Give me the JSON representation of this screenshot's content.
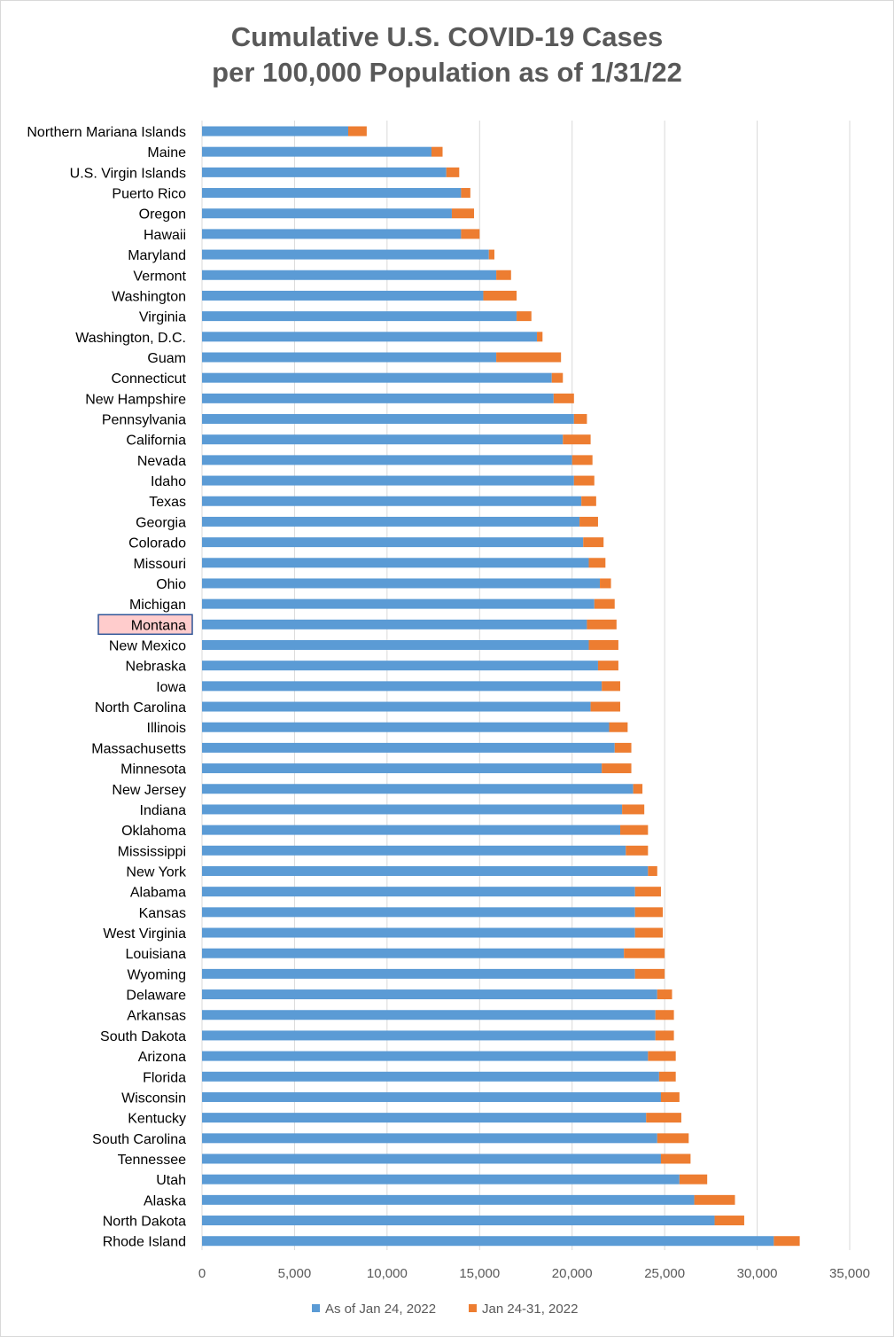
{
  "chart_data": {
    "type": "bar",
    "orientation": "horizontal",
    "stacked": true,
    "title_line1": "Cumulative U.S. COVID-19 Cases",
    "title_line2": "per 100,000 Population as of 1/31/22",
    "xlabel": "",
    "ylabel": "",
    "xlim": [
      0,
      35000
    ],
    "xticks": [
      0,
      5000,
      10000,
      15000,
      20000,
      25000,
      30000,
      35000
    ],
    "xtick_labels": [
      "0",
      "5,000",
      "10,000",
      "15,000",
      "20,000",
      "25,000",
      "30,000",
      "35,000"
    ],
    "grid": "vertical",
    "legend_position": "bottom",
    "highlighted_category": "Montana",
    "colors": {
      "series1": "#5b9bd5",
      "series2": "#ed7d31",
      "highlight_fill": "#ffcccc",
      "highlight_border": "#2f5597",
      "grid": "#d9d9d9",
      "title": "#595959"
    },
    "categories": [
      "Northern Mariana Islands",
      "Maine",
      "U.S. Virgin Islands",
      "Puerto Rico",
      "Oregon",
      "Hawaii",
      "Maryland",
      "Vermont",
      "Washington",
      "Virginia",
      "Washington, D.C.",
      "Guam",
      "Connecticut",
      "New Hampshire",
      "Pennsylvania",
      "California",
      "Nevada",
      "Idaho",
      "Texas",
      "Georgia",
      "Colorado",
      "Missouri",
      "Ohio",
      "Michigan",
      "Montana",
      "New Mexico",
      "Nebraska",
      "Iowa",
      "North Carolina",
      "Illinois",
      "Massachusetts",
      "Minnesota",
      "New Jersey",
      "Indiana",
      "Oklahoma",
      "Mississippi",
      "New York",
      "Alabama",
      "Kansas",
      "West Virginia",
      "Louisiana",
      "Wyoming",
      "Delaware",
      "Arkansas",
      "South Dakota",
      "Arizona",
      "Florida",
      "Wisconsin",
      "Kentucky",
      "South Carolina",
      "Tennessee",
      "Utah",
      "Alaska",
      "North Dakota",
      "Rhode Island"
    ],
    "series": [
      {
        "name": "As of Jan 24, 2022",
        "values": [
          7900,
          12400,
          13200,
          14000,
          13500,
          14000,
          15500,
          15900,
          15200,
          17000,
          18100,
          15900,
          18900,
          19000,
          20100,
          19500,
          20000,
          20100,
          20500,
          20400,
          20600,
          20900,
          21500,
          21200,
          20800,
          20900,
          21400,
          21600,
          21000,
          22000,
          22300,
          21600,
          23300,
          22700,
          22600,
          22900,
          24100,
          23400,
          23400,
          23400,
          22800,
          23400,
          24600,
          24500,
          24500,
          24100,
          24700,
          24800,
          24000,
          24600,
          24800,
          25800,
          26600,
          27700,
          30900
        ]
      },
      {
        "name": "Jan 24-31, 2022",
        "values": [
          1000,
          600,
          700,
          500,
          1200,
          1000,
          300,
          800,
          1800,
          800,
          300,
          3500,
          600,
          1100,
          700,
          1500,
          1100,
          1100,
          800,
          1000,
          1100,
          900,
          600,
          1100,
          1600,
          1600,
          1100,
          1000,
          1600,
          1000,
          900,
          1600,
          500,
          1200,
          1500,
          1200,
          500,
          1400,
          1500,
          1500,
          2200,
          1600,
          800,
          1000,
          1000,
          1500,
          900,
          1000,
          1900,
          1700,
          1600,
          1500,
          2200,
          1600,
          1400
        ]
      }
    ]
  }
}
